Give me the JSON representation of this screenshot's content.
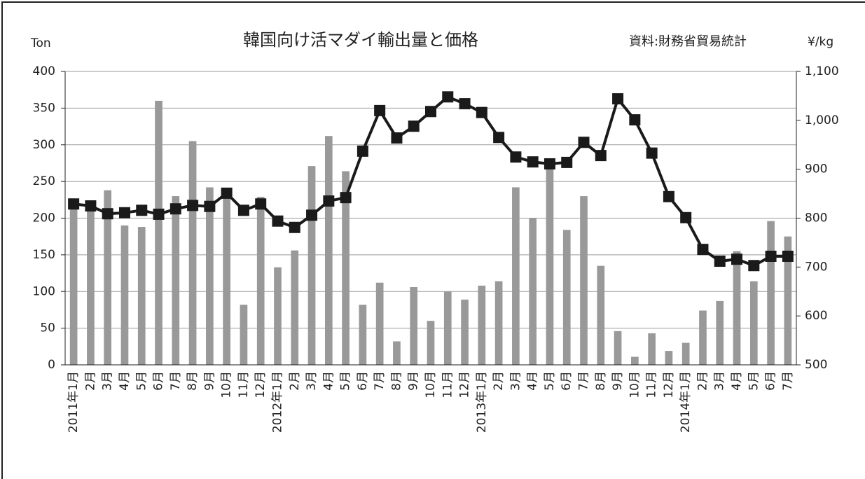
{
  "chart_data": {
    "type": "bar-line",
    "title": "韓国向け活マダイ輸出量と価格",
    "source": "資料:財務省貿易統計",
    "y_label": "Ton",
    "y2_label": "¥/kg",
    "categories": [
      "2011年1月",
      "2月",
      "3月",
      "4月",
      "5月",
      "6月",
      "7月",
      "8月",
      "9月",
      "10月",
      "11月",
      "12月",
      "2012年1月",
      "2月",
      "3月",
      "4月",
      "5月",
      "6月",
      "7月",
      "8月",
      "9月",
      "10月",
      "11月",
      "12月",
      "2013年1月",
      "2月",
      "3月",
      "4月",
      "5月",
      "6月",
      "7月",
      "8月",
      "9月",
      "10月",
      "11月",
      "12月",
      "2014年1月",
      "2月",
      "3月",
      "4月",
      "5月",
      "6月",
      "7月"
    ],
    "series": [
      {
        "type": "bar",
        "color": "#999999",
        "values": [
          215,
          210,
          238,
          190,
          188,
          360,
          230,
          305,
          242,
          230,
          82,
          229,
          133,
          156,
          271,
          312,
          264,
          82,
          112,
          32,
          106,
          60,
          100,
          89,
          108,
          114,
          242,
          200,
          275,
          184,
          230,
          135,
          46,
          11,
          43,
          19,
          30,
          74,
          87,
          155,
          114,
          196,
          175
        ]
      },
      {
        "type": "line",
        "axis": "y2",
        "color": "#1a1a1a",
        "values": [
          829,
          825,
          809,
          811,
          816,
          808,
          819,
          826,
          824,
          851,
          816,
          829,
          794,
          781,
          806,
          835,
          842,
          937,
          1020,
          964,
          988,
          1018,
          1048,
          1034,
          1016,
          965,
          925,
          915,
          911,
          914,
          955,
          928,
          1044,
          1001,
          933,
          844,
          801,
          736,
          712,
          716,
          703,
          722,
          722
        ]
      }
    ],
    "ylim": [
      0,
      400
    ],
    "yticks": [
      0,
      50,
      100,
      150,
      200,
      250,
      300,
      350,
      400
    ],
    "y2lim": [
      500,
      1100
    ],
    "y2ticks": [
      500,
      600,
      700,
      800,
      900,
      {
        "value": 1000,
        "label": "1,000"
      },
      {
        "value": 1100,
        "label": "1,100"
      }
    ],
    "grid": true
  }
}
